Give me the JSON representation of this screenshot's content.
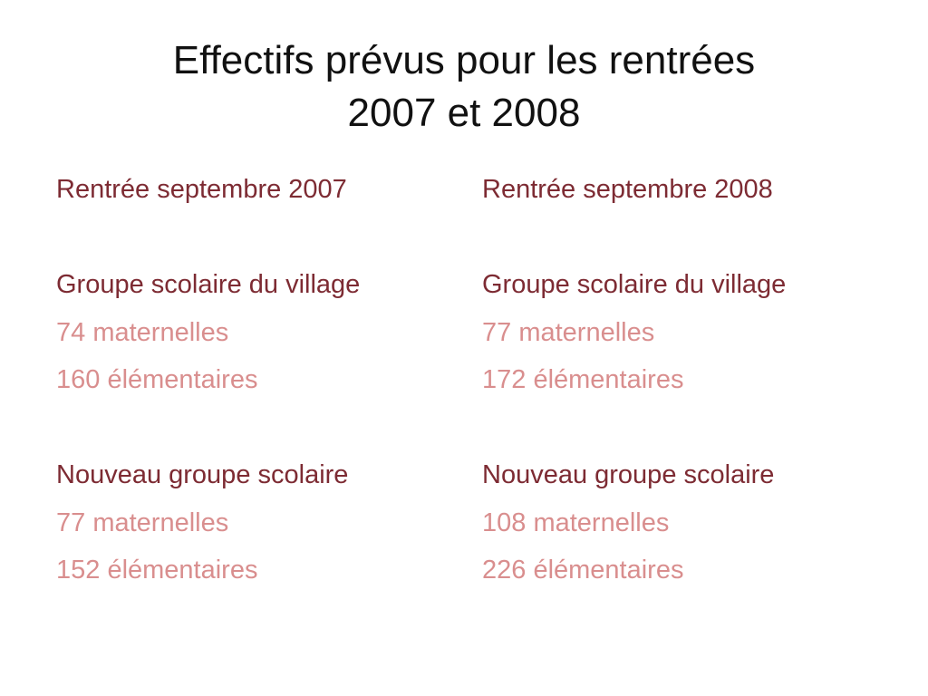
{
  "title": {
    "line1": "Effectifs prévus pour les rentrées",
    "line2": "2007 et 2008"
  },
  "columns": [
    {
      "heading": "Rentrée septembre 2007",
      "groups": [
        {
          "name": "Groupe scolaire du village",
          "maternelles": "74 maternelles",
          "elementaires": "160 élémentaires"
        },
        {
          "name": "Nouveau groupe scolaire",
          "maternelles": "77 maternelles",
          "elementaires": "152 élémentaires"
        }
      ]
    },
    {
      "heading": "Rentrée septembre 2008",
      "groups": [
        {
          "name": "Groupe scolaire du village",
          "maternelles": "77 maternelles",
          "elementaires": "172 élémentaires"
        },
        {
          "name": "Nouveau groupe scolaire",
          "maternelles": "108 maternelles",
          "elementaires": "226 élémentaires"
        }
      ]
    }
  ],
  "colors": {
    "title": "#111111",
    "heading": "#7d2b33",
    "value": "#d98e8e"
  }
}
